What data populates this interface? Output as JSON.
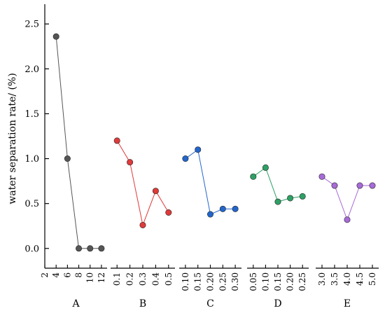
{
  "chart_data": {
    "type": "line",
    "ylabel": "water separation rate/ (%)",
    "ylim": [
      -0.22,
      2.72
    ],
    "yticks": [
      "0.0",
      "0.5",
      "1.0",
      "1.5",
      "2.0",
      "2.5"
    ],
    "grid": false,
    "groups": [
      {
        "name": "A",
        "color": "#555555",
        "x_range": [
          2,
          13
        ],
        "tick_labels": [
          "2",
          "4",
          "6",
          "8",
          "10",
          "12"
        ],
        "tick_values": [
          2,
          4,
          6,
          8,
          10,
          12
        ],
        "x": [
          4,
          6,
          8,
          10,
          12
        ],
        "y": [
          2.36,
          1.0,
          0.0,
          0.0,
          0.0
        ]
      },
      {
        "name": "B",
        "color": "#e03a3a",
        "x_range": [
          0.05,
          0.55
        ],
        "tick_labels": [
          "0.1",
          "0.2",
          "0.3",
          "0.4",
          "0.5"
        ],
        "tick_values": [
          0.1,
          0.2,
          0.3,
          0.4,
          0.5
        ],
        "x": [
          0.1,
          0.2,
          0.3,
          0.4,
          0.5
        ],
        "y": [
          1.2,
          0.96,
          0.26,
          0.64,
          0.4
        ]
      },
      {
        "name": "C",
        "color": "#2266cc",
        "x_range": [
          0.075,
          0.325
        ],
        "tick_labels": [
          "0.10",
          "0.15",
          "0.20",
          "0.25",
          "0.30"
        ],
        "tick_values": [
          0.1,
          0.15,
          0.2,
          0.25,
          0.3
        ],
        "x": [
          0.1,
          0.15,
          0.2,
          0.25,
          0.3
        ],
        "y": [
          1.0,
          1.1,
          0.38,
          0.44,
          0.44
        ]
      },
      {
        "name": "D",
        "color": "#2fa065",
        "x_range": [
          0.025,
          0.275
        ],
        "tick_labels": [
          "0.05",
          "0.10",
          "0.15",
          "0.20",
          "0.25"
        ],
        "tick_values": [
          0.05,
          0.1,
          0.15,
          0.2,
          0.25
        ],
        "x": [
          0.05,
          0.1,
          0.15,
          0.2,
          0.25
        ],
        "y": [
          0.8,
          0.9,
          0.52,
          0.56,
          0.58
        ]
      },
      {
        "name": "E",
        "color": "#a86ad8",
        "x_range": [
          2.75,
          5.25
        ],
        "tick_labels": [
          "3.0",
          "3.5",
          "4.0",
          "4.5",
          "5.0"
        ],
        "tick_values": [
          3.0,
          3.5,
          4.0,
          4.5,
          5.0
        ],
        "x": [
          3.0,
          3.5,
          4.0,
          4.5,
          5.0
        ],
        "y": [
          0.8,
          0.7,
          0.32,
          0.7,
          0.7
        ]
      }
    ]
  }
}
